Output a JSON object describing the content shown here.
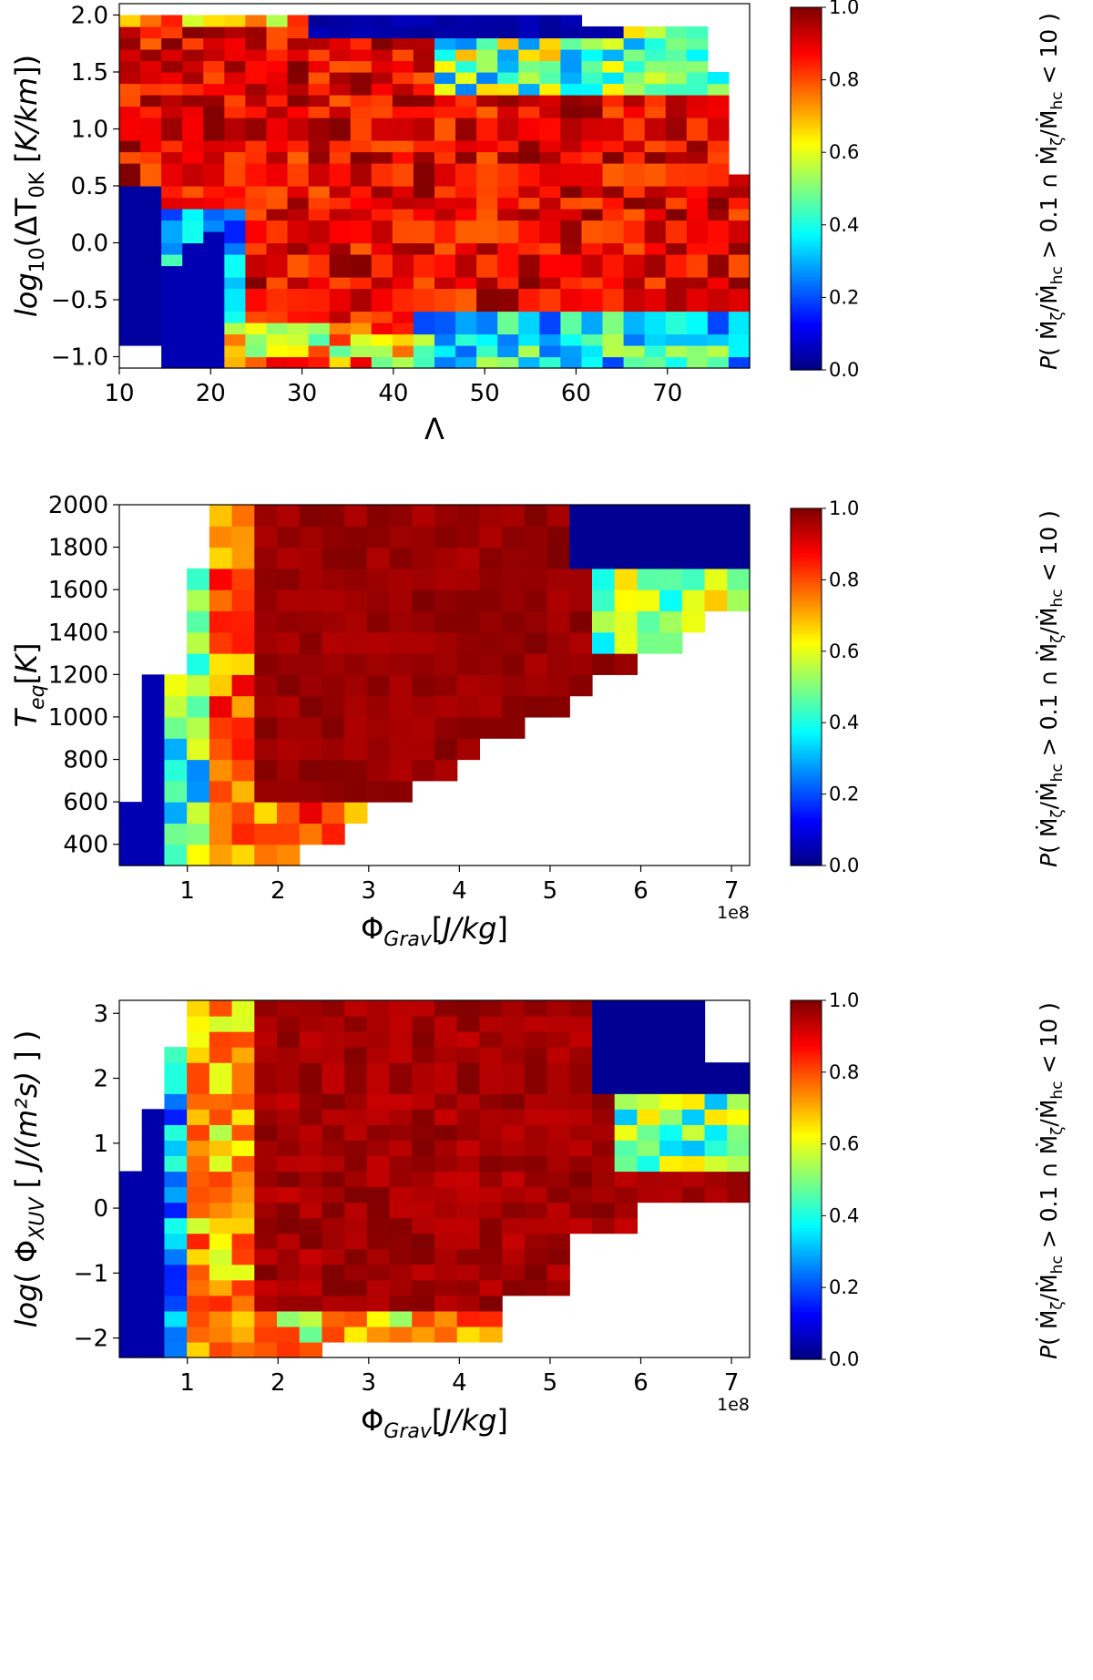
{
  "figure": {
    "description_panels": 3,
    "colormap": [
      "#00007f",
      "#0000ff",
      "#007fff",
      "#00ffff",
      "#7fff7f",
      "#ffff00",
      "#ff7f00",
      "#ff0000",
      "#7f0000"
    ]
  },
  "chart_data": [
    {
      "type": "heatmap",
      "title": "",
      "xlabel": "Λ",
      "ylabel": "log10(ΔT0K [K/km])",
      "xlim": [
        10,
        79
      ],
      "ylim": [
        -1.1,
        2.1
      ],
      "xticks": [
        "10",
        "20",
        "30",
        "40",
        "50",
        "60",
        "70"
      ],
      "yticks": [
        "−1.0",
        "−0.5",
        "0.0",
        "0.5",
        "1.0",
        "1.5",
        "2.0"
      ],
      "x_offset": "",
      "colorbar": {
        "range": [
          0,
          1
        ],
        "ticks": [
          "0.0",
          "0.2",
          "0.4",
          "0.6",
          "0.8",
          "1.0"
        ],
        "label": "P(Ṁζ/Ṁhc > 0.1 ∩ Ṁζ/Ṁhc < 10)"
      },
      "summary": "Probability is high (dark red, ~0.9–1.0) over most of the domain for Λ > 25 and −0.3 < log10ΔT < 1.5; low (~0.0–0.1, dark blue) for Λ < 20 at low log10ΔT and for log10ΔT > 1.7 at Λ 35–60; transitional cyan/green/yellow values near log10ΔT ≈ −0.7 to −1.0 and ≈ 1.5."
    },
    {
      "type": "heatmap",
      "title": "",
      "xlabel": "ΦGrav[J/kg]",
      "ylabel": "Teq[K]",
      "xlim": [
        0.25,
        7.2
      ],
      "ylim": [
        300,
        2000
      ],
      "xticks": [
        "1",
        "2",
        "3",
        "4",
        "5",
        "6",
        "7"
      ],
      "yticks": [
        "400",
        "600",
        "800",
        "1000",
        "1200",
        "1400",
        "1600",
        "1800",
        "2000"
      ],
      "x_offset": "1e8",
      "colorbar": {
        "range": [
          0,
          1
        ],
        "ticks": [
          "0.0",
          "0.2",
          "0.4",
          "0.6",
          "0.8",
          "1.0"
        ],
        "label": "P(Ṁζ/Ṁhc > 0.1 ∩ Ṁζ/Ṁhc < 10)"
      },
      "summary": "Probability ~1.0 (dark red) in the interior region ΦGrav 1.7–6×10^8 J/kg, Teq 600–1800 K; dark blue at ΦGrav < 1×10^8 and at high ΦGrav with high Teq (upper right); transition through yellow/green/cyan on the edges."
    },
    {
      "type": "heatmap",
      "title": "",
      "xlabel": "ΦGrav[J/kg]",
      "ylabel": "log(ΦXUV [J/(m²s)])",
      "xlim": [
        0.25,
        7.2
      ],
      "ylim": [
        -2.3,
        3.2
      ],
      "xticks": [
        "1",
        "2",
        "3",
        "4",
        "5",
        "6",
        "7"
      ],
      "yticks": [
        "−2",
        "−1",
        "0",
        "1",
        "2",
        "3"
      ],
      "x_offset": "1e8",
      "colorbar": {
        "range": [
          0,
          1
        ],
        "ticks": [
          "0.0",
          "0.2",
          "0.4",
          "0.6",
          "0.8",
          "1.0"
        ],
        "label": "P(Ṁζ/Ṁhc > 0.1 ∩ Ṁζ/Ṁhc < 10)"
      },
      "summary": "Probability ~1.0 (dark red) for ΦGrav 2.5–6×10^8 J/kg and log ΦXUV −1.7 to 1.5; dark blue at ΦGrav < 1×10^8 and in the upper-right (ΦGrav > 5.5×10^8, log ΦXUV > 1); yellow/orange/green band near ΦGrav 1–2×10^8 and at the lower edge."
    }
  ]
}
